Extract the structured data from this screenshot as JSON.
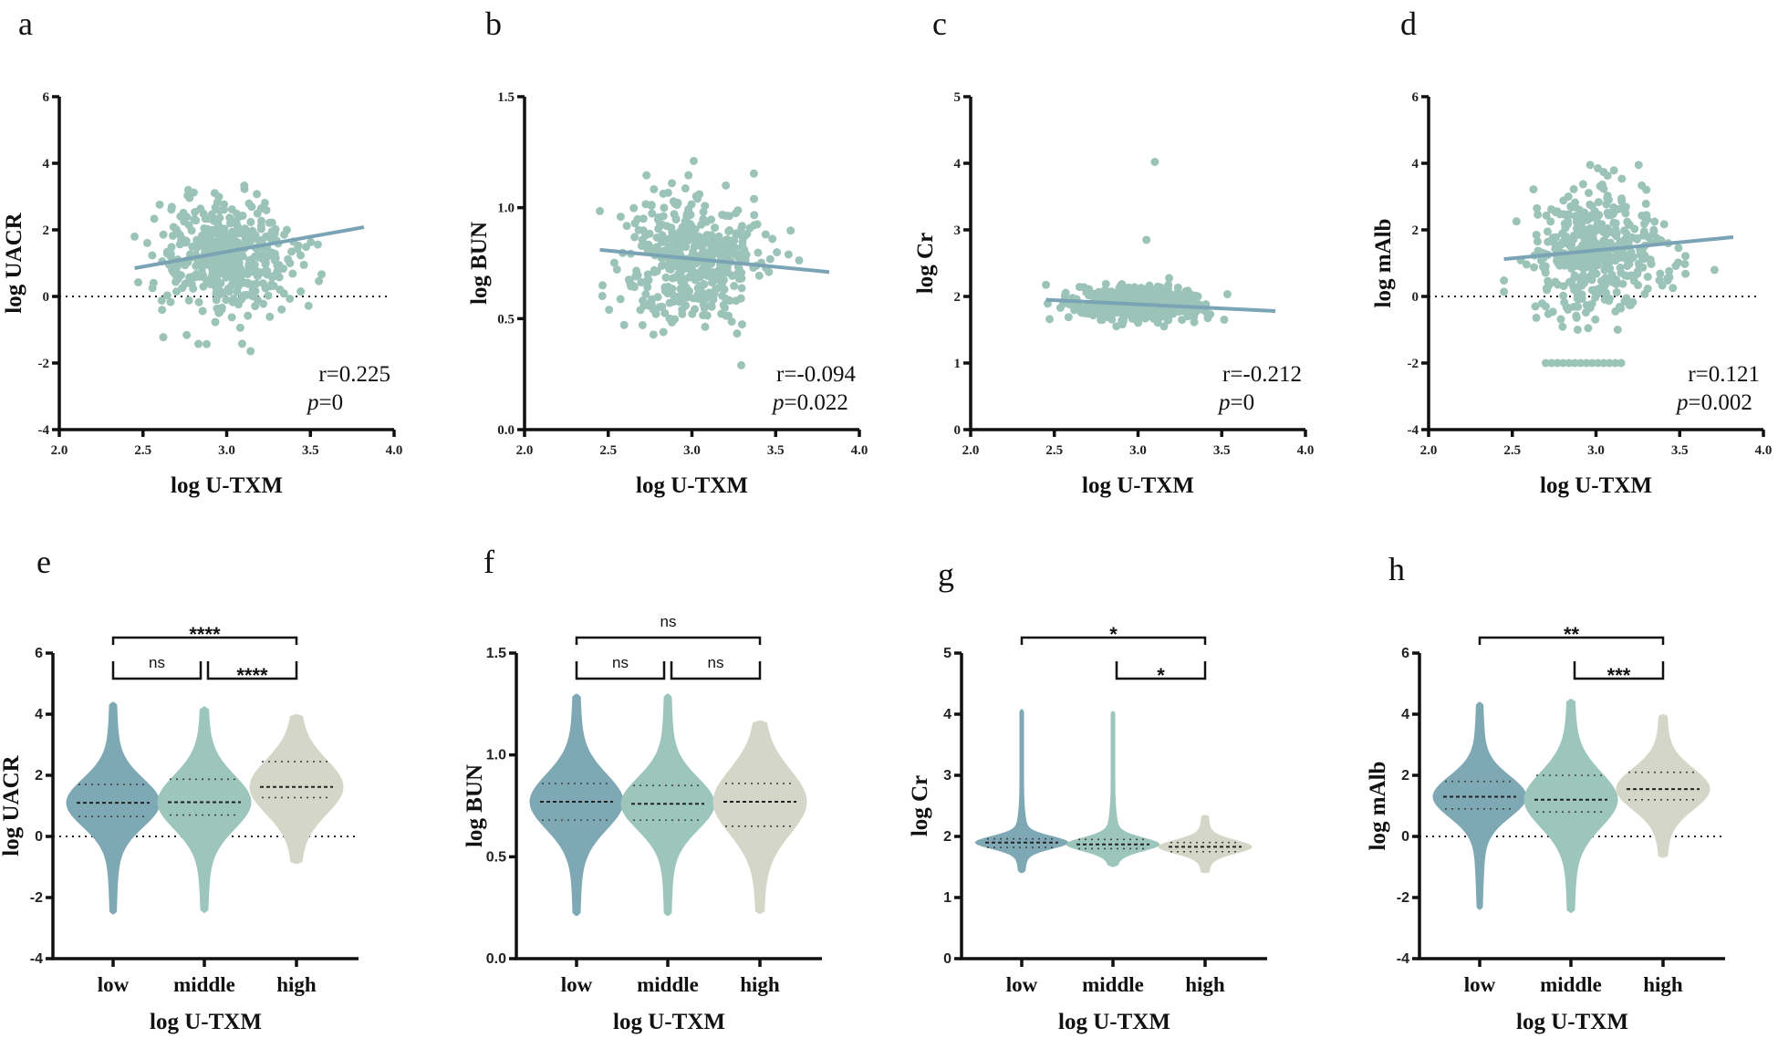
{
  "colors": {
    "scatter": "#9cc3b8",
    "fit_line": "#7ba3b6",
    "low": "#7fa8b5",
    "middle": "#9cc5bb",
    "high": "#d4d7c7"
  },
  "chart_data": [
    {
      "panel": "a",
      "type": "scatter",
      "xlabel": "log U-TXM",
      "ylabel": "log UACR",
      "xlim": [
        2.0,
        4.0
      ],
      "ylim": [
        -4,
        6
      ],
      "xticks": [
        "2.0",
        "2.5",
        "3.0",
        "3.5",
        "4.0"
      ],
      "yticks": [
        "-4",
        "-2",
        "0",
        "2",
        "4",
        "6"
      ],
      "r_text": "r=0.225",
      "p_label": "p",
      "p_value": "=0",
      "fit": {
        "x": [
          2.45,
          3.82
        ],
        "y": [
          0.85,
          2.08
        ]
      },
      "distribution": {
        "x_mean": 3.0,
        "x_sd": 0.2,
        "x_range": [
          2.45,
          3.82
        ],
        "y_mean": 1.2,
        "y_sd": 0.85,
        "y_range": [
          -2,
          3.9
        ],
        "n": 450
      },
      "reference_line": 0
    },
    {
      "panel": "b",
      "type": "scatter",
      "xlabel": "log U-TXM",
      "ylabel": "log BUN",
      "xlim": [
        2.0,
        4.0
      ],
      "ylim": [
        0,
        1.5
      ],
      "xticks": [
        "2.0",
        "2.5",
        "3.0",
        "3.5",
        "4.0"
      ],
      "yticks": [
        "0.0",
        "0.5",
        "1.0",
        "1.5"
      ],
      "r_text": "r=-0.094",
      "p_label": "p",
      "p_value": "=0.022",
      "fit": {
        "x": [
          2.45,
          3.82
        ],
        "y": [
          0.81,
          0.71
        ]
      },
      "distribution": {
        "x_mean": 3.0,
        "x_sd": 0.2,
        "x_range": [
          2.45,
          3.82
        ],
        "y_mean": 0.77,
        "y_sd": 0.15,
        "y_range": [
          0.28,
          1.23
        ],
        "n": 450
      },
      "reference_line": null
    },
    {
      "panel": "c",
      "type": "scatter",
      "xlabel": "log U-TXM",
      "ylabel": "log Cr",
      "xlim": [
        2.0,
        4.0
      ],
      "ylim": [
        0,
        5
      ],
      "xticks": [
        "2.0",
        "2.5",
        "3.0",
        "3.5",
        "4.0"
      ],
      "yticks": [
        "0",
        "1",
        "2",
        "3",
        "4",
        "5"
      ],
      "r_text": "r=-0.212",
      "p_label": "p",
      "p_value": "=0",
      "fit": {
        "x": [
          2.45,
          3.82
        ],
        "y": [
          1.95,
          1.78
        ]
      },
      "distribution": {
        "x_mean": 3.0,
        "x_sd": 0.2,
        "x_range": [
          2.45,
          3.82
        ],
        "y_mean": 1.9,
        "y_sd": 0.12,
        "y_range": [
          1.55,
          2.5
        ],
        "n": 450
      },
      "outliers": [
        [
          3.1,
          4.02
        ],
        [
          3.05,
          2.85
        ]
      ],
      "reference_line": null
    },
    {
      "panel": "d",
      "type": "scatter",
      "xlabel": "log U-TXM",
      "ylabel": "log mAlb",
      "xlim": [
        2.0,
        4.0
      ],
      "ylim": [
        -4,
        6
      ],
      "xticks": [
        "2.0",
        "2.5",
        "3.0",
        "3.5",
        "4.0"
      ],
      "yticks": [
        "-4",
        "-2",
        "0",
        "2",
        "4",
        "6"
      ],
      "r_text": "r=0.121",
      "p_label": "p",
      "p_value": "=0.002",
      "fit": {
        "x": [
          2.45,
          3.82
        ],
        "y": [
          1.12,
          1.78
        ]
      },
      "distribution": {
        "x_mean": 3.0,
        "x_sd": 0.2,
        "x_range": [
          2.45,
          3.82
        ],
        "y_mean": 1.3,
        "y_sd": 0.85,
        "y_range": [
          -1,
          3.95
        ],
        "n": 450
      },
      "floor_points": {
        "y": -2,
        "x_range": [
          2.7,
          3.15
        ],
        "n": 14
      },
      "reference_line": 0
    },
    {
      "panel": "e",
      "type": "violin",
      "xlabel": "log U-TXM",
      "ylabel": "log UACR",
      "ylim": [
        -4,
        6
      ],
      "yticks": [
        "-4",
        "-2",
        "0",
        "2",
        "4",
        "6"
      ],
      "categories": [
        "low",
        "middle",
        "high"
      ],
      "groups": [
        {
          "min": -2.55,
          "q1": 0.65,
          "median": 1.1,
          "q3": 1.7,
          "max": 4.4
        },
        {
          "min": -2.5,
          "q1": 0.7,
          "median": 1.12,
          "q3": 1.87,
          "max": 4.25
        },
        {
          "min": -0.9,
          "q1": 1.27,
          "median": 1.62,
          "q3": 2.45,
          "max": 4.0
        }
      ],
      "comparisons": [
        {
          "from": 0,
          "to": 2,
          "label": "****",
          "level": 1
        },
        {
          "from": 0,
          "to": 1,
          "label": "ns",
          "level": 0
        },
        {
          "from": 1,
          "to": 2,
          "label": "****",
          "level": 0
        }
      ],
      "reference_line": 0
    },
    {
      "panel": "f",
      "type": "violin",
      "xlabel": "log U-TXM",
      "ylabel": "log BUN",
      "ylim": [
        0,
        1.5
      ],
      "yticks": [
        "0.0",
        "0.5",
        "1.0",
        "1.5"
      ],
      "categories": [
        "low",
        "middle",
        "high"
      ],
      "groups": [
        {
          "min": 0.21,
          "q1": 0.68,
          "median": 0.77,
          "q3": 0.86,
          "max": 1.3
        },
        {
          "min": 0.21,
          "q1": 0.68,
          "median": 0.76,
          "q3": 0.85,
          "max": 1.3
        },
        {
          "min": 0.22,
          "q1": 0.65,
          "median": 0.77,
          "q3": 0.86,
          "max": 1.17
        }
      ],
      "comparisons": [
        {
          "from": 0,
          "to": 2,
          "label": "ns",
          "level": 1
        },
        {
          "from": 0,
          "to": 1,
          "label": "ns",
          "level": 0
        },
        {
          "from": 1,
          "to": 2,
          "label": "ns",
          "level": 0
        }
      ],
      "reference_line": null
    },
    {
      "panel": "g",
      "type": "violin",
      "xlabel": "log U-TXM",
      "ylabel": "log Cr",
      "ylim": [
        0,
        5
      ],
      "yticks": [
        "0",
        "1",
        "2",
        "3",
        "4",
        "5"
      ],
      "categories": [
        "low",
        "middle",
        "high"
      ],
      "groups": [
        {
          "min": 1.4,
          "q1": 1.82,
          "median": 1.9,
          "q3": 1.96,
          "max": 4.08
        },
        {
          "min": 1.5,
          "q1": 1.8,
          "median": 1.87,
          "q3": 1.95,
          "max": 4.05
        },
        {
          "min": 1.4,
          "q1": 1.75,
          "median": 1.83,
          "q3": 1.9,
          "max": 2.35
        }
      ],
      "comparisons": [
        {
          "from": 0,
          "to": 2,
          "label": "*",
          "level": 1
        },
        {
          "from": 1,
          "to": 2,
          "label": "*",
          "level": 0
        }
      ],
      "reference_line": null
    },
    {
      "panel": "h",
      "type": "violin",
      "xlabel": "log U-TXM",
      "ylabel": "log mAlb",
      "ylim": [
        -4,
        6
      ],
      "yticks": [
        "-4",
        "-2",
        "0",
        "2",
        "4",
        "6"
      ],
      "categories": [
        "low",
        "middle",
        "high"
      ],
      "groups": [
        {
          "min": -2.4,
          "q1": 0.9,
          "median": 1.3,
          "q3": 1.8,
          "max": 4.4
        },
        {
          "min": -2.5,
          "q1": 0.8,
          "median": 1.2,
          "q3": 2.0,
          "max": 4.5
        },
        {
          "min": -0.7,
          "q1": 1.2,
          "median": 1.55,
          "q3": 2.1,
          "max": 4.0
        }
      ],
      "comparisons": [
        {
          "from": 0,
          "to": 2,
          "label": "**",
          "level": 1
        },
        {
          "from": 1,
          "to": 2,
          "label": "***",
          "level": 0
        }
      ],
      "reference_line": 0
    }
  ]
}
